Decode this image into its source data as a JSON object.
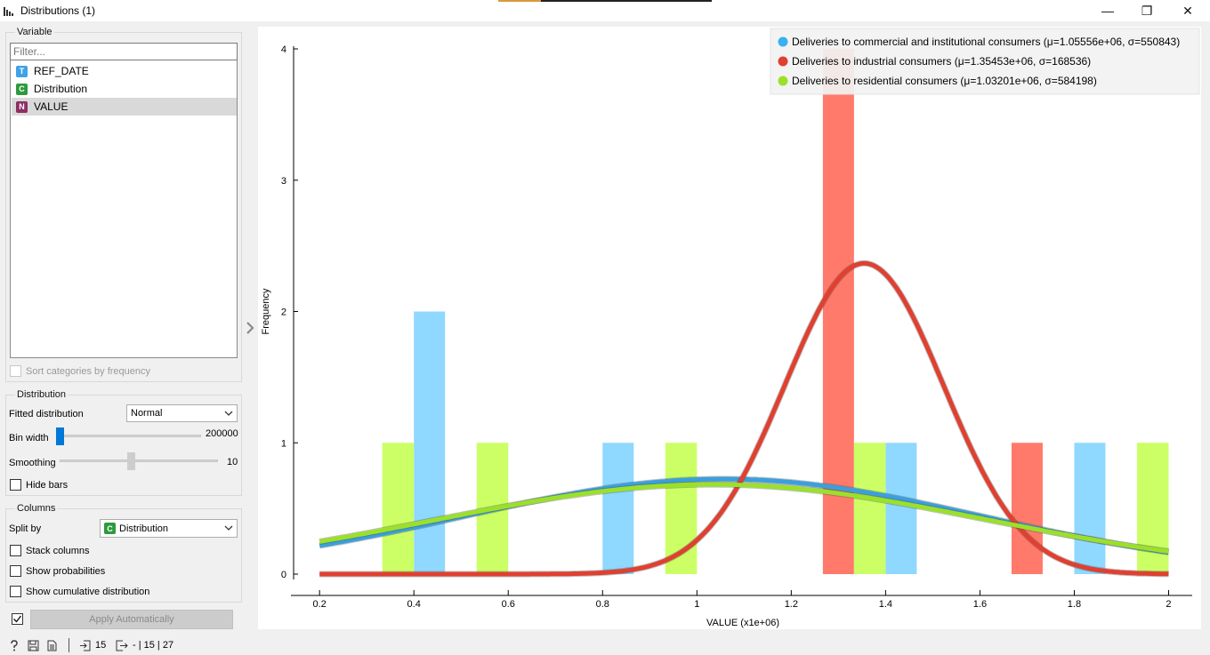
{
  "window": {
    "title": "Distributions (1)",
    "controls": {
      "minimize": "—",
      "restore": "❐",
      "close": "✕"
    }
  },
  "variable_box": {
    "title": "Variable",
    "filter_placeholder": "Filter...",
    "items": [
      {
        "badge": "T",
        "badge_color": "#3ea2e6",
        "label": "REF_DATE",
        "selected": false
      },
      {
        "badge": "C",
        "badge_color": "#2e9a3e",
        "label": "Distribution",
        "selected": false
      },
      {
        "badge": "N",
        "badge_color": "#8e2e66",
        "label": "VALUE",
        "selected": true
      }
    ],
    "sort_label": "Sort categories by frequency"
  },
  "distribution_box": {
    "title": "Distribution",
    "fitted_label": "Fitted distribution",
    "fitted_value": "Normal",
    "bin_width_label": "Bin width",
    "bin_width_value": "200000",
    "bin_width_level": 0.0,
    "smoothing_label": "Smoothing",
    "smoothing_value": "10",
    "smoothing_level": 0.45,
    "hide_bars_label": "Hide bars"
  },
  "columns_box": {
    "title": "Columns",
    "split_label": "Split by",
    "split_value": "Distribution",
    "split_badge": "C",
    "stack_label": "Stack columns",
    "prob_label": "Show probabilities",
    "cumulative_label": "Show cumulative distribution"
  },
  "apply": {
    "label": "Apply Automatically",
    "checked": true
  },
  "status": {
    "input_count": "15",
    "output_text": "- | 15 | 27"
  },
  "chart_data": {
    "type": "bar",
    "xlabel": "VALUE (x1e+06)",
    "ylabel": "Frequency",
    "xlim": [
      0.145,
      2.05
    ],
    "ylim": [
      0,
      4
    ],
    "xticks": [
      0.2,
      0.4,
      0.6,
      0.8,
      1,
      1.2,
      1.4,
      1.6,
      1.8,
      2
    ],
    "yticks": [
      0,
      1,
      2,
      3,
      4
    ],
    "legend_position": "top-right",
    "series": [
      {
        "name": "Deliveries to commercial and institutional consumers (μ=1.05556e+06, σ=550843)",
        "color": "#8fd8ff",
        "line_color": "#3aa0dc",
        "bars": [
          {
            "x0": 0.4,
            "x1": 0.466,
            "count": 2
          },
          {
            "x0": 0.8,
            "x1": 0.866,
            "count": 1
          },
          {
            "x0": 1.4,
            "x1": 1.466,
            "count": 1
          },
          {
            "x0": 1.8,
            "x1": 1.866,
            "count": 1
          }
        ],
        "fit": {
          "mu": 1.05556,
          "sigma": 0.550843,
          "n": 5
        }
      },
      {
        "name": "Deliveries to industrial consumers (μ=1.35453e+06, σ=168536)",
        "color": "#ff7a6a",
        "line_color": "#e04030",
        "bars": [
          {
            "x0": 1.267,
            "x1": 1.333,
            "count": 4
          },
          {
            "x0": 1.667,
            "x1": 1.733,
            "count": 1
          }
        ],
        "fit": {
          "mu": 1.35453,
          "sigma": 0.168536,
          "n": 5
        }
      },
      {
        "name": "Deliveries to residential consumers (μ=1.03201e+06, σ=584198)",
        "color": "#ccff66",
        "line_color": "#9be02a",
        "bars": [
          {
            "x0": 0.333,
            "x1": 0.4,
            "count": 1
          },
          {
            "x0": 0.533,
            "x1": 0.6,
            "count": 1
          },
          {
            "x0": 0.933,
            "x1": 1.0,
            "count": 1
          },
          {
            "x0": 1.333,
            "x1": 1.4,
            "count": 1
          },
          {
            "x0": 1.933,
            "x1": 2.0,
            "count": 1
          }
        ],
        "fit": {
          "mu": 1.03201,
          "sigma": 0.584198,
          "n": 5
        }
      }
    ]
  }
}
